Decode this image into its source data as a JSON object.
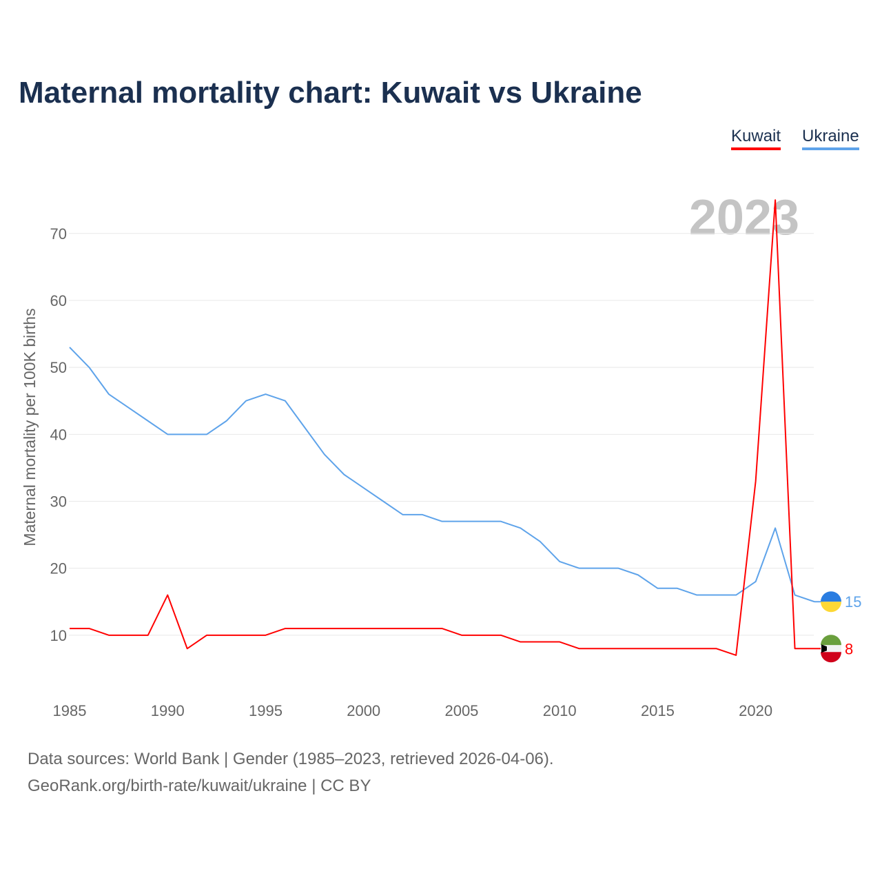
{
  "chart_data": {
    "type": "line",
    "title": "Maternal mortality chart: Kuwait vs Ukraine",
    "xlabel": "",
    "ylabel": "Maternal mortality per 100K births",
    "xlim": [
      1985,
      2023
    ],
    "ylim": [
      0,
      77
    ],
    "x_ticks": [
      1985,
      1990,
      1995,
      2000,
      2005,
      2010,
      2015,
      2020
    ],
    "y_ticks": [
      10,
      20,
      30,
      40,
      50,
      60,
      70
    ],
    "grid": true,
    "legend_position": "top-right",
    "year_watermark": "2023",
    "x": [
      1985,
      1986,
      1987,
      1988,
      1989,
      1990,
      1991,
      1992,
      1993,
      1994,
      1995,
      1996,
      1997,
      1998,
      1999,
      2000,
      2001,
      2002,
      2003,
      2004,
      2005,
      2006,
      2007,
      2008,
      2009,
      2010,
      2011,
      2012,
      2013,
      2014,
      2015,
      2016,
      2017,
      2018,
      2019,
      2020,
      2021,
      2022,
      2023
    ],
    "series": [
      {
        "name": "Kuwait",
        "color": "#ff0000",
        "end_label": "8",
        "values": [
          11,
          11,
          10,
          10,
          10,
          16,
          8,
          10,
          10,
          10,
          10,
          11,
          11,
          11,
          11,
          11,
          11,
          11,
          11,
          11,
          10,
          10,
          10,
          9,
          9,
          9,
          8,
          8,
          8,
          8,
          8,
          8,
          8,
          8,
          7,
          33,
          75,
          8,
          8
        ]
      },
      {
        "name": "Ukraine",
        "color": "#5ea3ea",
        "end_label": "15",
        "values": [
          53,
          50,
          46,
          44,
          42,
          40,
          40,
          40,
          42,
          45,
          46,
          45,
          41,
          37,
          34,
          32,
          30,
          28,
          28,
          27,
          27,
          27,
          27,
          26,
          24,
          21,
          20,
          20,
          20,
          19,
          17,
          17,
          16,
          16,
          16,
          18,
          26,
          16,
          15
        ]
      }
    ]
  },
  "footer": {
    "line1": "Data sources: World Bank | Gender (1985–2023, retrieved 2026-04-06).",
    "line2": "GeoRank.org/birth-rate/kuwait/ukraine | CC BY"
  }
}
